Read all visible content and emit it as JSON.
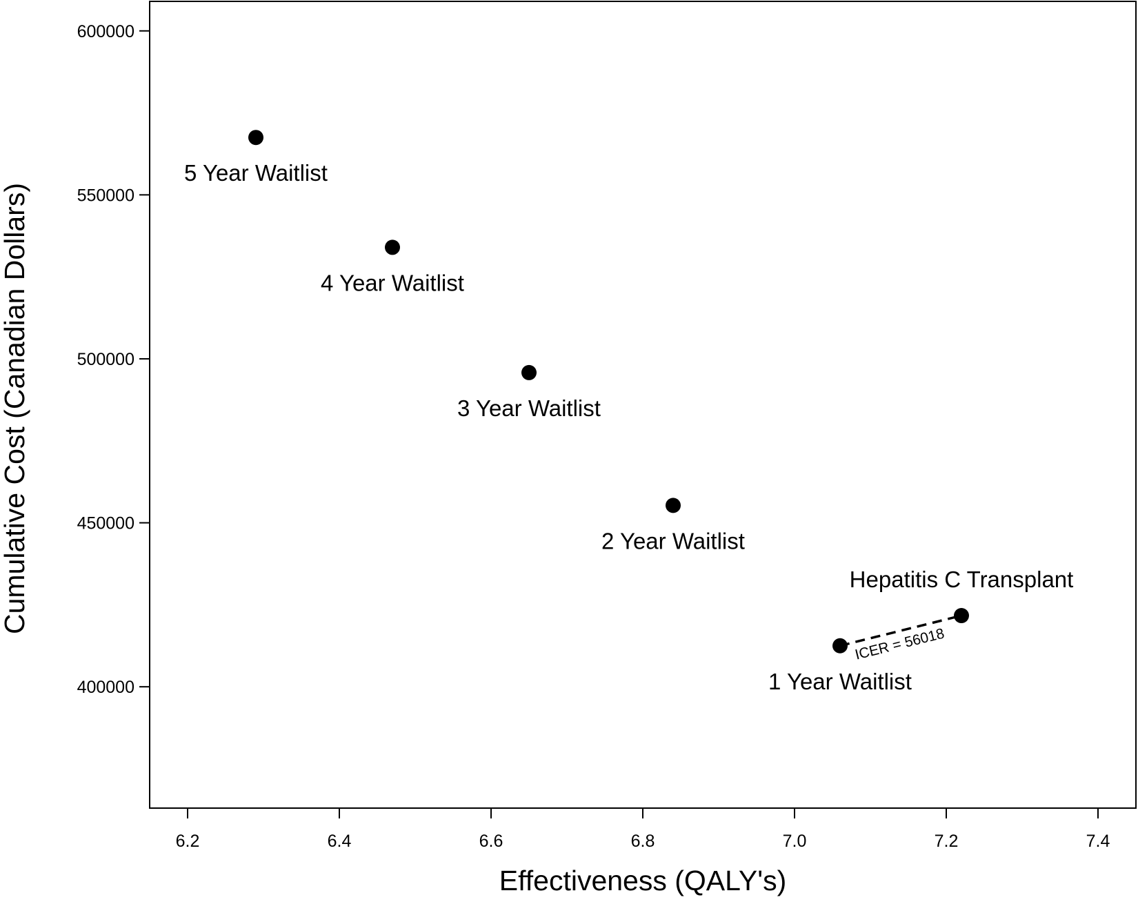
{
  "chart_data": {
    "type": "scatter",
    "title": "",
    "xlabel": "Effectiveness (QALY's)",
    "ylabel": "Cumulative Cost (Canadian Dollars)",
    "xlim": [
      6.15,
      7.45
    ],
    "ylim": [
      363000,
      609000
    ],
    "x_ticks": [
      6.2,
      6.4,
      6.6,
      6.8,
      7.0,
      7.2,
      7.4
    ],
    "x_tick_labels": [
      "6.2",
      "6.4",
      "6.6",
      "6.8",
      "7.0",
      "7.2",
      "7.4"
    ],
    "y_ticks": [
      400000,
      450000,
      500000,
      550000,
      600000
    ],
    "y_tick_labels": [
      "400000",
      "450000",
      "500000",
      "550000",
      "600000"
    ],
    "grid": false,
    "legend": "none",
    "points": [
      {
        "label": "5 Year Waitlist",
        "x": 6.29,
        "y": 567500,
        "label_position": "below"
      },
      {
        "label": "4 Year Waitlist",
        "x": 6.47,
        "y": 534000,
        "label_position": "below"
      },
      {
        "label": "3 Year Waitlist",
        "x": 6.65,
        "y": 495800,
        "label_position": "below"
      },
      {
        "label": "2 Year Waitlist",
        "x": 6.84,
        "y": 455300,
        "label_position": "below"
      },
      {
        "label": "1 Year Waitlist",
        "x": 7.06,
        "y": 412500,
        "label_position": "below"
      },
      {
        "label": "Hepatitis C Transplant",
        "x": 7.22,
        "y": 421700,
        "label_position": "above"
      }
    ],
    "annotations": [
      {
        "type": "dashed-line",
        "from": "1 Year Waitlist",
        "to": "Hepatitis C Transplant",
        "text": "ICER = 56018"
      }
    ],
    "colors": {
      "points": "#000000",
      "axes": "#000000",
      "background": "#ffffff"
    }
  }
}
